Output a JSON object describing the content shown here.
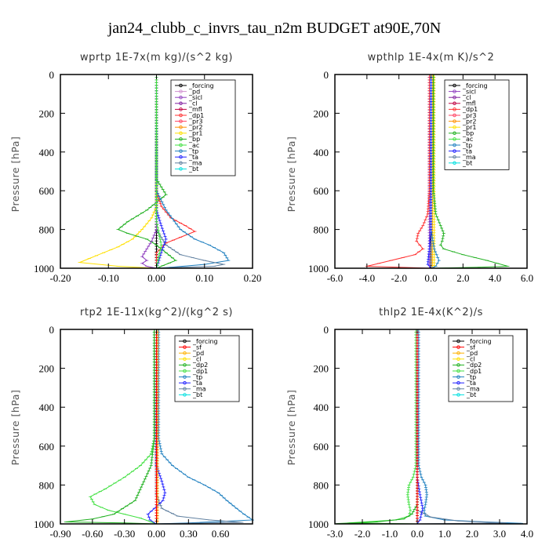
{
  "title": "jan24_clubb_c_invrs_tau_n2m  BUDGET at90E,70N",
  "colors": {
    "forcing": "#000000",
    "sf": "#ff0000",
    "pd": "#d090d0",
    "sicl": "#9040c0",
    "cl": "#ffb000",
    "clpur": "#8020a0",
    "mfl": "#c00040",
    "dp1": "#ff3030",
    "dp2": "#20b020",
    "dp1g": "#40e040",
    "pr3": "#ff4060",
    "pr2": "#ff9000",
    "pr1": "#ffe000",
    "bp": "#20b020",
    "ac": "#40e040",
    "tp": "#2080c0",
    "ta": "#2020ff",
    "ma": "#6080a0",
    "bt": "#00e0e0"
  },
  "chart_data": [
    {
      "type": "line",
      "title": "wprtp  1E-7x(m kg)/(s^2 kg)",
      "ylabel": "Pressure [hPa]",
      "xlim": [
        -0.2,
        0.2
      ],
      "ylim": [
        1000,
        0
      ],
      "xticks": [
        "-0.20",
        "-0.10",
        "0.00",
        "0.10",
        "0.20"
      ],
      "yticks": [
        "0",
        "200",
        "400",
        "600",
        "800",
        "1000"
      ],
      "legend": [
        "_forcing",
        "_pd",
        "_sicl",
        "_cl",
        "_mfl",
        "_dp1",
        "_pr3",
        "_pr2",
        "_pr1",
        "_bp",
        "_ac",
        "_tp",
        "_ta",
        "_ma",
        "_bt"
      ],
      "series": [
        {
          "name": "_forcing",
          "color": "#000000",
          "x": [
            0,
            0
          ],
          "y": [
            0,
            1000
          ]
        },
        {
          "name": "_pr1",
          "color": "#ffe000",
          "x": [
            0,
            0,
            -0.01,
            -0.03,
            -0.05,
            -0.08,
            -0.11,
            -0.14,
            -0.16,
            -0.08,
            0
          ],
          "y": [
            0,
            680,
            740,
            800,
            850,
            890,
            920,
            950,
            970,
            990,
            1000
          ]
        },
        {
          "name": "_bp",
          "color": "#20b020",
          "x": [
            0,
            0,
            0.01,
            0.02,
            -0.02,
            -0.06,
            -0.08,
            -0.06,
            -0.02,
            0,
            0.02,
            0.04,
            0
          ],
          "y": [
            0,
            540,
            580,
            620,
            700,
            760,
            800,
            820,
            850,
            880,
            920,
            960,
            1000
          ]
        },
        {
          "name": "_dp1",
          "color": "#ff3030",
          "x": [
            0,
            0,
            0.01,
            0.03,
            0.06,
            0.08,
            0.05,
            0.02,
            0,
            0
          ],
          "y": [
            0,
            600,
            680,
            740,
            780,
            810,
            840,
            870,
            920,
            1000
          ]
        },
        {
          "name": "_tp",
          "color": "#2080c0",
          "x": [
            0,
            0,
            0.02,
            0.05,
            0.08,
            0.11,
            0.14,
            0.15,
            0.1,
            0.03,
            0
          ],
          "y": [
            0,
            600,
            700,
            800,
            850,
            880,
            920,
            960,
            980,
            995,
            1000
          ]
        },
        {
          "name": "_ma",
          "color": "#6080a0",
          "x": [
            0,
            0,
            0.02,
            0.05,
            0.1,
            0.14,
            0.12,
            0.05,
            0
          ],
          "y": [
            0,
            800,
            880,
            930,
            960,
            980,
            990,
            995,
            1000
          ]
        },
        {
          "name": "_ta",
          "color": "#2020ff",
          "x": [
            0,
            0,
            0.01,
            0.02,
            0.01,
            0
          ],
          "y": [
            0,
            700,
            780,
            850,
            920,
            1000
          ]
        },
        {
          "name": "_sicl",
          "color": "#9040c0",
          "x": [
            0,
            0,
            -0.01,
            -0.02,
            -0.03,
            -0.02,
            -0.03,
            -0.02,
            0
          ],
          "y": [
            0,
            800,
            860,
            900,
            940,
            960,
            975,
            990,
            1000
          ]
        },
        {
          "name": "_ac",
          "color": "#40e040",
          "x": [
            0,
            0,
            0.005,
            0.01,
            0.005,
            0
          ],
          "y": [
            0,
            760,
            820,
            880,
            940,
            1000
          ]
        }
      ]
    },
    {
      "type": "line",
      "title": "wpthlp  1E-4x(m K)/s^2",
      "ylabel": "Pressure [hPa]",
      "xlim": [
        -6.0,
        6.0
      ],
      "ylim": [
        1000,
        0
      ],
      "xticks": [
        "-6.0",
        "-4.0",
        "-2.0",
        "0.0",
        "2.0",
        "4.0",
        "6.0"
      ],
      "yticks": [
        "0",
        "200",
        "400",
        "600",
        "800",
        "1000"
      ],
      "legend": [
        "_forcing",
        "_sicl",
        "_cl",
        "_mfl",
        "_dp1",
        "_pr3",
        "_pr2",
        "_pr1",
        "_bp",
        "_ac",
        "_tp",
        "_ta",
        "_ma",
        "_bt"
      ],
      "series": [
        {
          "name": "_forcing",
          "color": "#000000",
          "x": [
            0,
            0
          ],
          "y": [
            0,
            1000
          ]
        },
        {
          "name": "_cl",
          "color": "#ffb000",
          "x": [
            0.1,
            0.1
          ],
          "y": [
            0,
            1000
          ]
        },
        {
          "name": "_sicl",
          "color": "#9040c0",
          "x": [
            -0.1,
            -0.1
          ],
          "y": [
            0,
            1000
          ]
        },
        {
          "name": "_pr1",
          "color": "#ffe000",
          "x": [
            0.2,
            0.2
          ],
          "y": [
            0,
            1000
          ]
        },
        {
          "name": "_bp",
          "color": "#20b020",
          "x": [
            0.15,
            0.15,
            0.3,
            0.6,
            0.8,
            0.7,
            0.6,
            0.8,
            2.0,
            3.5,
            4.8,
            3.0,
            0
          ],
          "y": [
            0,
            600,
            720,
            780,
            820,
            860,
            880,
            900,
            930,
            960,
            990,
            995,
            1000
          ]
        },
        {
          "name": "_dp1",
          "color": "#ff3030",
          "x": [
            -0.1,
            -0.1,
            -0.2,
            -0.5,
            -0.8,
            -0.9,
            -0.7,
            -0.5,
            -1.0,
            -2.5,
            -4.0,
            -2.0,
            0
          ],
          "y": [
            0,
            600,
            720,
            780,
            820,
            860,
            880,
            900,
            930,
            960,
            990,
            995,
            1000
          ]
        },
        {
          "name": "_tp",
          "color": "#2080c0",
          "x": [
            0,
            0,
            0.2,
            0.5,
            0.3,
            0
          ],
          "y": [
            0,
            800,
            900,
            960,
            990,
            1000
          ]
        },
        {
          "name": "_ta",
          "color": "#2020ff",
          "x": [
            0,
            0,
            -0.1,
            -0.2,
            0
          ],
          "y": [
            0,
            800,
            900,
            980,
            1000
          ]
        }
      ]
    },
    {
      "type": "line",
      "title": "rtp2  1E-11x(kg^2)/(kg^2 s)",
      "ylabel": "Pressure [hPa]",
      "xlim": [
        -0.9,
        0.9
      ],
      "ylim": [
        1000,
        0
      ],
      "xticks": [
        "-0.90",
        "-0.60",
        "-0.30",
        "0.00",
        "0.30",
        "0.60"
      ],
      "yticks": [
        "0",
        "200",
        "400",
        "600",
        "800",
        "1000"
      ],
      "legend": [
        "_forcing",
        "_sf",
        "_pd",
        "_cl",
        "_dp2",
        "_dp1",
        "_tp",
        "_ta",
        "_ma",
        "_bt"
      ],
      "series": [
        {
          "name": "_forcing",
          "color": "#000000",
          "x": [
            0,
            0
          ],
          "y": [
            0,
            1000
          ]
        },
        {
          "name": "_dp1",
          "color": "#40e040",
          "x": [
            -0.02,
            -0.02,
            -0.05,
            -0.15,
            -0.3,
            -0.48,
            -0.62,
            -0.58,
            -0.45,
            -0.3,
            -0.15,
            -0.05,
            0
          ],
          "y": [
            0,
            560,
            640,
            700,
            760,
            820,
            860,
            900,
            930,
            950,
            970,
            990,
            1000
          ]
        },
        {
          "name": "_dp2",
          "color": "#20b020",
          "x": [
            -0.02,
            -0.02,
            -0.05,
            -0.2,
            -0.4,
            -0.6,
            -0.85,
            -0.3,
            0
          ],
          "y": [
            0,
            560,
            700,
            880,
            950,
            975,
            990,
            995,
            1000
          ]
        },
        {
          "name": "_tp",
          "color": "#2080c0",
          "x": [
            0.02,
            0.02,
            0.05,
            0.15,
            0.3,
            0.45,
            0.58,
            0.66,
            0.75,
            0.82,
            0.9,
            0.3,
            0
          ],
          "y": [
            0,
            560,
            640,
            700,
            760,
            800,
            840,
            880,
            920,
            950,
            980,
            995,
            1000
          ]
        },
        {
          "name": "_ma",
          "color": "#6080a0",
          "x": [
            0,
            0,
            0.05,
            0.2,
            0.5,
            0.8,
            0.3,
            0
          ],
          "y": [
            0,
            850,
            920,
            960,
            980,
            992,
            997,
            1000
          ]
        },
        {
          "name": "_ta",
          "color": "#2020ff",
          "x": [
            0,
            0,
            0.05,
            0.08,
            0.06,
            -0.02,
            -0.08,
            -0.06,
            0
          ],
          "y": [
            0,
            700,
            780,
            840,
            880,
            920,
            950,
            980,
            1000
          ]
        },
        {
          "name": "_pd",
          "color": "#ffb000",
          "x": [
            0.01,
            0.01
          ],
          "y": [
            0,
            1000
          ]
        },
        {
          "name": "_sf",
          "color": "#ff0000",
          "x": [
            0,
            0
          ],
          "y": [
            0,
            1000
          ]
        }
      ]
    },
    {
      "type": "line",
      "title": "thlp2  1E-4x(K^2)/s",
      "ylabel": "Pressure [hPa]",
      "xlim": [
        -3.0,
        4.0
      ],
      "ylim": [
        1000,
        0
      ],
      "xticks": [
        "-3.0",
        "-2.0",
        "-1.0",
        "0.0",
        "1.0",
        "2.0",
        "3.0",
        "4.0"
      ],
      "yticks": [
        "0",
        "200",
        "400",
        "600",
        "800",
        "1000"
      ],
      "legend": [
        "_forcing",
        "_sf",
        "_pd",
        "_cl",
        "_dp2",
        "_dp1",
        "_tp",
        "_ta",
        "_ma",
        "_bt"
      ],
      "series": [
        {
          "name": "_forcing",
          "color": "#000000",
          "x": [
            0,
            0
          ],
          "y": [
            0,
            1000
          ]
        },
        {
          "name": "_dp1",
          "color": "#40e040",
          "x": [
            -0.05,
            -0.05,
            -0.15,
            -0.3,
            -0.35,
            -0.3,
            -0.25,
            -0.3,
            -0.8,
            -2.5,
            0
          ],
          "y": [
            0,
            700,
            760,
            800,
            850,
            900,
            930,
            960,
            980,
            995,
            1000
          ]
        },
        {
          "name": "_dp2",
          "color": "#20b020",
          "x": [
            0,
            0,
            -0.2,
            -0.5,
            -1.5,
            -2.9,
            0
          ],
          "y": [
            0,
            900,
            950,
            975,
            990,
            998,
            1000
          ]
        },
        {
          "name": "_tp",
          "color": "#2080c0",
          "x": [
            0.05,
            0.05,
            0.15,
            0.3,
            0.35,
            0.3,
            0.25,
            0.3,
            1.0,
            2.5,
            3.8,
            0
          ],
          "y": [
            0,
            700,
            760,
            800,
            850,
            900,
            930,
            960,
            980,
            990,
            997,
            1000
          ]
        },
        {
          "name": "_ma",
          "color": "#6080a0",
          "x": [
            0,
            0,
            0.5,
            1.5,
            3.2,
            0
          ],
          "y": [
            0,
            930,
            965,
            985,
            995,
            1000
          ]
        },
        {
          "name": "_ta",
          "color": "#2020ff",
          "x": [
            0,
            0,
            0.1,
            0.2,
            0.1,
            0
          ],
          "y": [
            0,
            760,
            850,
            920,
            980,
            1000
          ]
        },
        {
          "name": "_sf",
          "color": "#ff0000",
          "x": [
            0,
            0
          ],
          "y": [
            0,
            1000
          ]
        }
      ]
    }
  ]
}
